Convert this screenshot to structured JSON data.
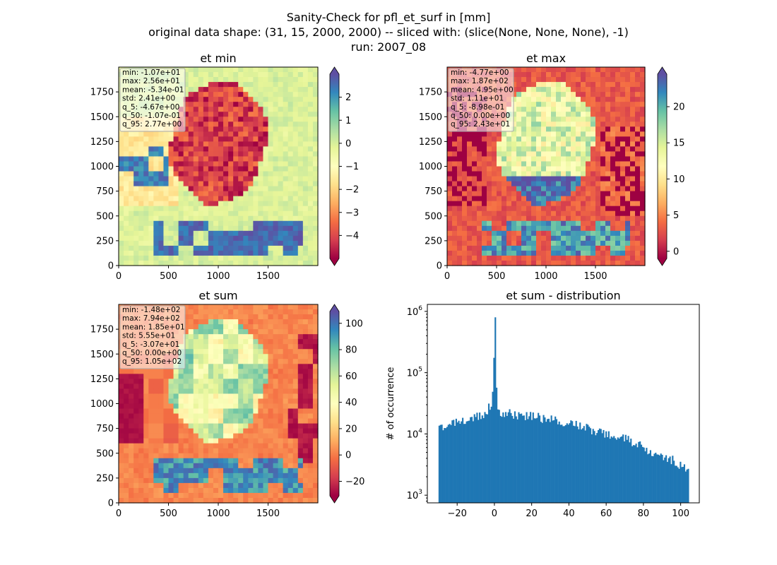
{
  "figure": {
    "title_lines": [
      "Sanity-Check for pfl_et_surf in [mm]",
      "original data shape: (31, 15, 2000, 2000) -- sliced with: (slice(None, None, None), -1)",
      "run: 2007_08"
    ]
  },
  "chart_data": [
    {
      "type": "heatmap",
      "title": "et min",
      "xlabel": "",
      "ylabel": "",
      "xlim": [
        0,
        2000
      ],
      "ylim": [
        0,
        2000
      ],
      "xticks": [
        0,
        500,
        1000,
        1500
      ],
      "yticks": [
        0,
        250,
        500,
        750,
        1000,
        1250,
        1500,
        1750
      ],
      "colormap": "Spectral",
      "colorbar": {
        "range": [
          -5,
          3
        ],
        "ticks": [
          2,
          1,
          0,
          -1,
          -2,
          -3,
          -4
        ],
        "tick_labels": [
          "2",
          "1",
          "0",
          "−1",
          "−2",
          "−3",
          "−4"
        ],
        "extend": "both"
      },
      "stats": [
        "min: -1.07e+01",
        "max: 2.56e+01",
        "mean: -5.34e-01",
        "std: 2.41e+00",
        "q_5: -4.67e+00",
        "q_50: -1.07e-01",
        "q_95: 2.77e+00"
      ]
    },
    {
      "type": "heatmap",
      "title": "et max",
      "xlabel": "",
      "ylabel": "",
      "xlim": [
        0,
        2000
      ],
      "ylim": [
        0,
        2000
      ],
      "xticks": [
        0,
        500,
        1000,
        1500
      ],
      "yticks": [
        0,
        250,
        500,
        750,
        1000,
        1250,
        1500,
        1750
      ],
      "colormap": "Spectral",
      "colorbar": {
        "range": [
          -1,
          24.5
        ],
        "ticks": [
          20,
          15,
          10,
          5,
          0
        ],
        "tick_labels": [
          "20",
          "15",
          "10",
          "5",
          "0"
        ],
        "extend": "both"
      },
      "stats": [
        "min: -4.77e+00",
        "max: 1.87e+02",
        "mean: 4.95e+00",
        "std: 1.11e+01",
        "q_5: -8.98e-01",
        "q_50: 0.00e+00",
        "q_95: 2.43e+01"
      ]
    },
    {
      "type": "heatmap",
      "title": "et sum",
      "xlabel": "",
      "ylabel": "",
      "xlim": [
        0,
        2000
      ],
      "ylim": [
        0,
        2000
      ],
      "xticks": [
        0,
        500,
        1000,
        1500
      ],
      "yticks": [
        0,
        250,
        500,
        750,
        1000,
        1250,
        1500,
        1750
      ],
      "colormap": "Spectral",
      "colorbar": {
        "range": [
          -31,
          109
        ],
        "ticks": [
          100,
          80,
          60,
          40,
          20,
          0,
          -20
        ],
        "tick_labels": [
          "100",
          "80",
          "60",
          "40",
          "20",
          "0",
          "−20"
        ],
        "extend": "both"
      },
      "stats": [
        "min: -1.48e+02",
        "max: 7.94e+02",
        "mean: 1.85e+01",
        "std: 5.55e+01",
        "q_5: -3.07e+01",
        "q_50: 0.00e+00",
        "q_95: 1.05e+02"
      ]
    },
    {
      "type": "bar",
      "title": "et sum - distribution",
      "xlabel": "",
      "ylabel": "# of occurrence",
      "xlim": [
        -36,
        110
      ],
      "ylim": [
        750,
        1300000
      ],
      "yscale": "log",
      "xticks": [
        -20,
        0,
        20,
        40,
        60,
        80,
        100
      ],
      "xtick_labels": [
        "−20",
        "0",
        "20",
        "40",
        "60",
        "80",
        "100"
      ],
      "yticks": [
        1000,
        10000,
        100000,
        1000000
      ],
      "bar_color": "#1f77b4",
      "bins": {
        "x": [
          -30,
          -25,
          -20,
          -15,
          -10,
          -5,
          -2,
          -1,
          0,
          1,
          2,
          5,
          10,
          15,
          20,
          25,
          30,
          35,
          40,
          45,
          50,
          55,
          60,
          65,
          70,
          75,
          80,
          85,
          90,
          95,
          100,
          104
        ],
        "counts": [
          12000,
          13000,
          16000,
          17500,
          19000,
          22000,
          32000,
          55000,
          800000,
          25000,
          23000,
          22000,
          21000,
          20000,
          19500,
          18500,
          17000,
          16000,
          15000,
          14000,
          12500,
          11000,
          10000,
          9500,
          8500,
          7000,
          6000,
          5000,
          4200,
          3800,
          3000,
          2800
        ]
      }
    }
  ]
}
